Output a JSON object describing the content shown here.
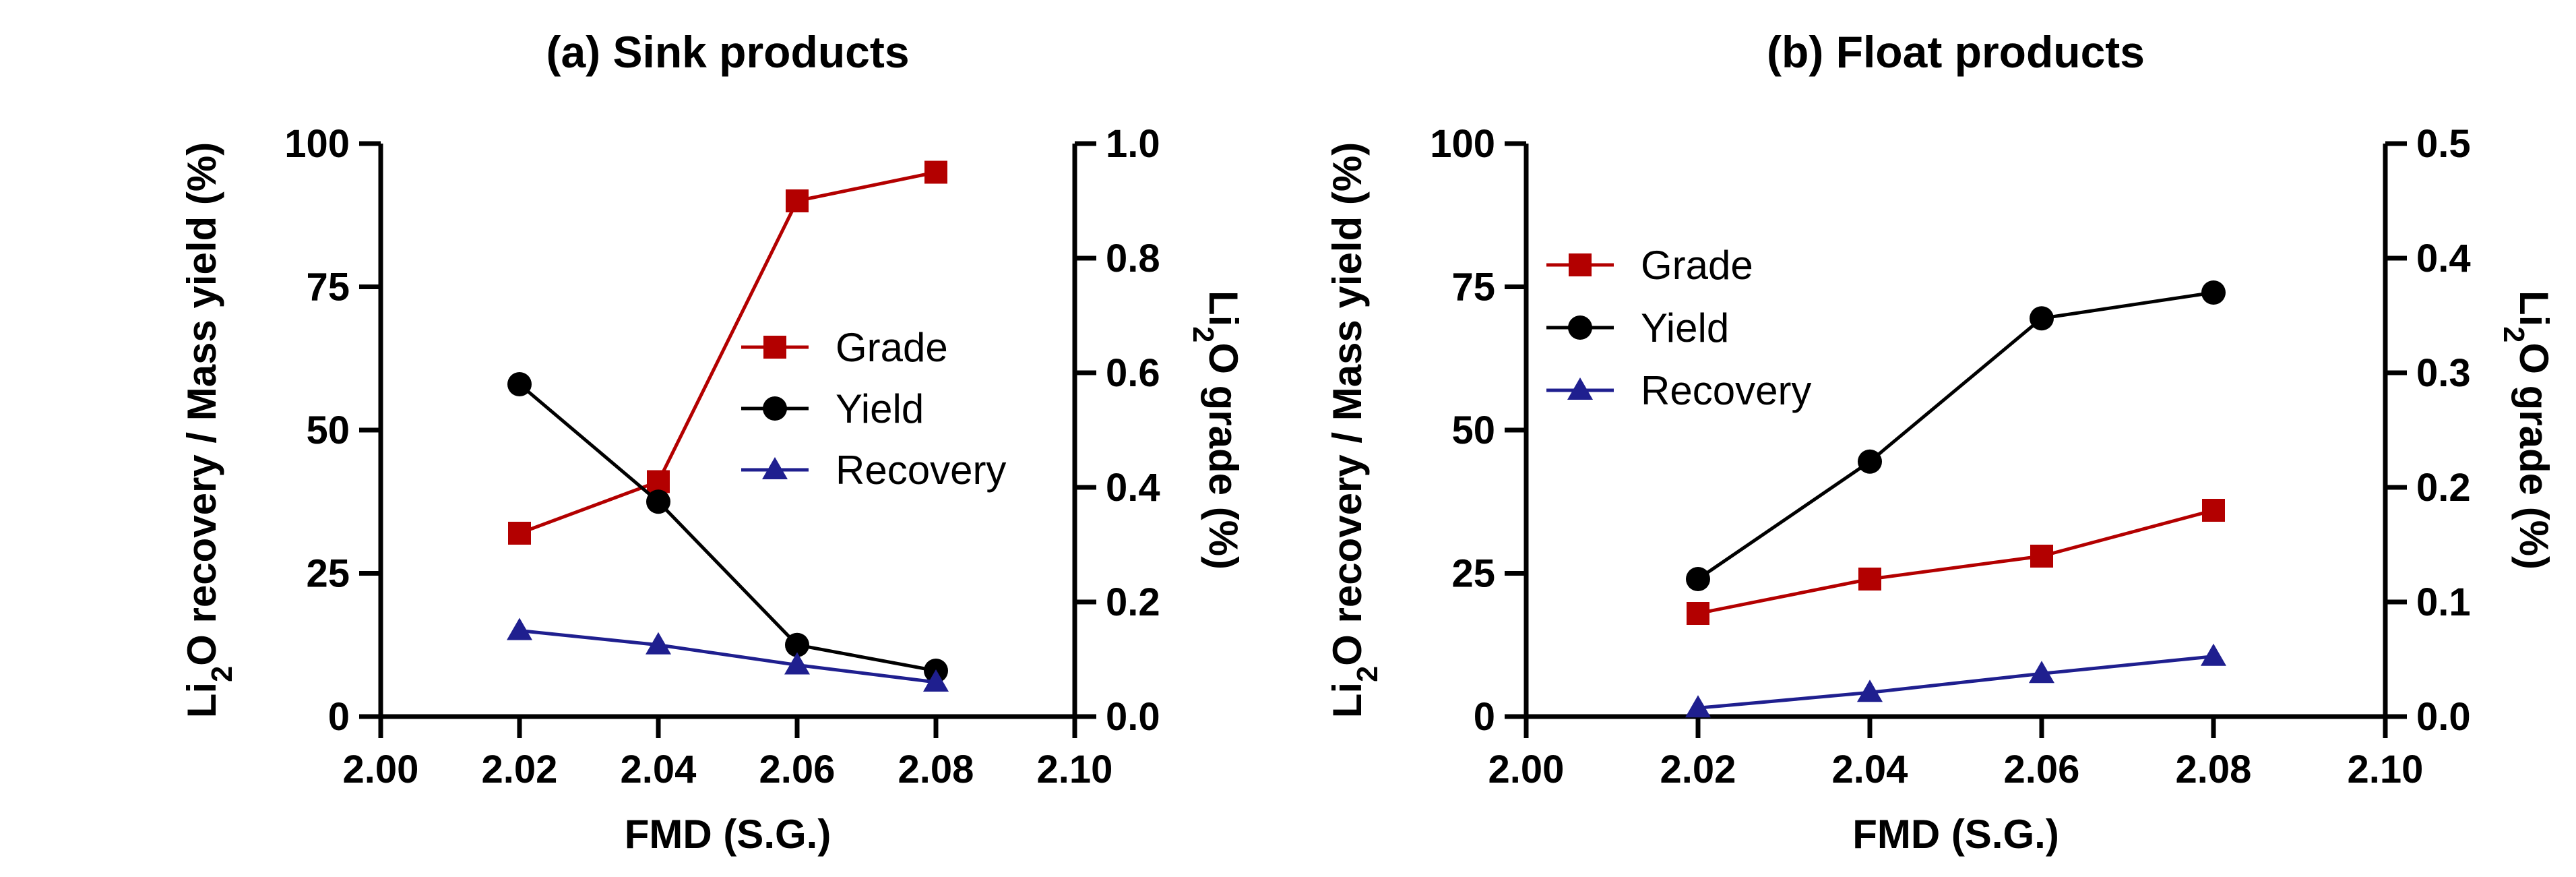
{
  "chart_data": [
    {
      "type": "line",
      "title": "(a) Sink products",
      "xlabel": "FMD (S.G.)",
      "ylabel_left": "Li2O recovery / Mass yield (%)",
      "ylabel_right": "Li2O grade (%)",
      "xlim": [
        2.0,
        2.1
      ],
      "x_ticks": [
        "2.00",
        "2.02",
        "2.04",
        "2.06",
        "2.08",
        "2.10"
      ],
      "ylim_left": [
        0,
        100
      ],
      "y_left_ticks": [
        "0",
        "25",
        "50",
        "75",
        "100"
      ],
      "ylim_right": [
        0,
        1.0
      ],
      "y_right_ticks": [
        "0.0",
        "0.2",
        "0.4",
        "0.6",
        "0.8",
        "1.0"
      ],
      "grid": false,
      "legend_position": "center-right",
      "x": [
        2.02,
        2.04,
        2.06,
        2.08
      ],
      "series": [
        {
          "name": "Grade",
          "axis": "right",
          "marker": "square",
          "color": "#b30000",
          "values": [
            0.32,
            0.41,
            0.9,
            0.95
          ]
        },
        {
          "name": "Yield",
          "axis": "left",
          "marker": "circle",
          "color": "#000000",
          "values": [
            58,
            37.5,
            12.5,
            8
          ]
        },
        {
          "name": "Recovery",
          "axis": "left",
          "marker": "triangle",
          "color": "#1f1f8f",
          "values": [
            15,
            12.5,
            9,
            6
          ]
        }
      ]
    },
    {
      "type": "line",
      "title": "(b) Float products",
      "xlabel": "FMD (S.G.)",
      "ylabel_left": "Li2O recovery / Mass yield (%)",
      "ylabel_right": "Li2O grade (%)",
      "xlim": [
        2.0,
        2.1
      ],
      "x_ticks": [
        "2.00",
        "2.02",
        "2.04",
        "2.06",
        "2.08",
        "2.10"
      ],
      "ylim_left": [
        0,
        100
      ],
      "y_left_ticks": [
        "0",
        "25",
        "50",
        "75",
        "100"
      ],
      "ylim_right": [
        0,
        0.5
      ],
      "y_right_ticks": [
        "0.0",
        "0.1",
        "0.2",
        "0.3",
        "0.4",
        "0.5"
      ],
      "grid": false,
      "legend_position": "top-left",
      "x": [
        2.02,
        2.04,
        2.06,
        2.08
      ],
      "series": [
        {
          "name": "Grade",
          "axis": "right",
          "marker": "square",
          "color": "#b30000",
          "values": [
            0.09,
            0.12,
            0.14,
            0.18
          ]
        },
        {
          "name": "Yield",
          "axis": "left",
          "marker": "circle",
          "color": "#000000",
          "values": [
            24,
            44.5,
            69.5,
            74
          ]
        },
        {
          "name": "Recovery",
          "axis": "left",
          "marker": "triangle",
          "color": "#1f1f8f",
          "values": [
            1.5,
            4.2,
            7.5,
            10.5
          ]
        }
      ]
    }
  ]
}
